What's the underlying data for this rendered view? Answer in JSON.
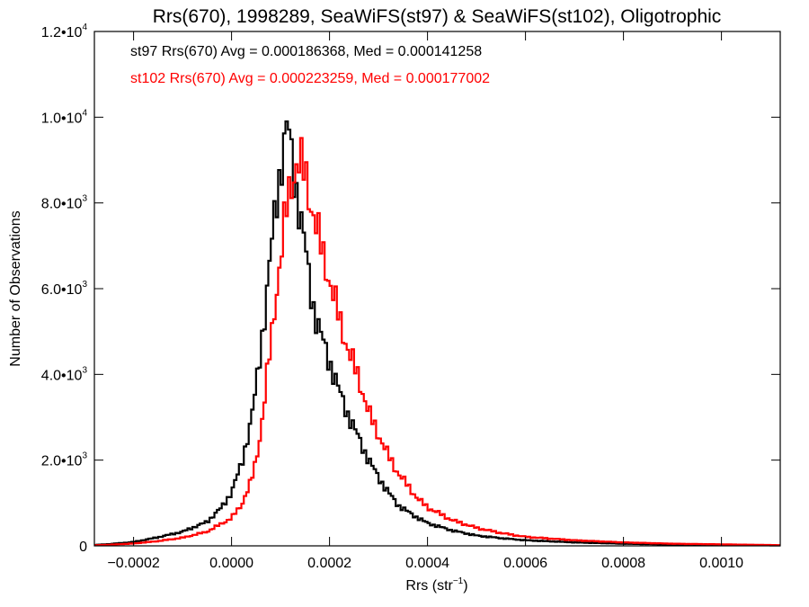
{
  "chart_data": {
    "type": "histogram",
    "title": "Rrs(670), 1998289, SeaWiFS(st97) & SeaWiFS(st102), Oligotrophic",
    "xlabel": "Rrs (str",
    "xlabel_sup": "−1",
    "xlabel_suffix": ")",
    "ylabel": "Number of Observations",
    "xlim": [
      -0.00028,
      0.00112
    ],
    "ylim": [
      0,
      12000
    ],
    "grid": false,
    "legend_position": "top-left",
    "x_ticks": [
      {
        "value": -0.0002,
        "label": "−0.0002"
      },
      {
        "value": 0.0,
        "label": "0.0000"
      },
      {
        "value": 0.0002,
        "label": "0.0002"
      },
      {
        "value": 0.0004,
        "label": "0.0004"
      },
      {
        "value": 0.0006,
        "label": "0.0006"
      },
      {
        "value": 0.0008,
        "label": "0.0008"
      },
      {
        "value": 0.001,
        "label": "0.0010"
      }
    ],
    "y_ticks": [
      {
        "value": 0,
        "label": "0",
        "sup": ""
      },
      {
        "value": 2000,
        "label": "2.0•10",
        "sup": "3"
      },
      {
        "value": 4000,
        "label": "4.0•10",
        "sup": "3"
      },
      {
        "value": 6000,
        "label": "6.0•10",
        "sup": "3"
      },
      {
        "value": 8000,
        "label": "8.0•10",
        "sup": "3"
      },
      {
        "value": 10000,
        "label": "1.0•10",
        "sup": "4"
      },
      {
        "value": 12000,
        "label": "1.2•10",
        "sup": "4"
      }
    ],
    "annotations": [
      "st97 Rrs(670) Avg = 0.000186368, Med = 0.000141258",
      "st102 Rrs(670) Avg = 0.000223259, Med = 0.000177002"
    ],
    "bin_width": 5e-06,
    "series": [
      {
        "name": "st97",
        "color": "#000000",
        "points": [
          [
            -0.00028,
            20
          ],
          [
            -0.00025,
            40
          ],
          [
            -0.0002,
            90
          ],
          [
            -0.00015,
            200
          ],
          [
            -0.0001,
            330
          ],
          [
            -5e-05,
            560
          ],
          [
            -2e-05,
            900
          ],
          [
            0.0,
            1250
          ],
          [
            2e-05,
            1900
          ],
          [
            4e-05,
            2900
          ],
          [
            5e-05,
            3700
          ],
          [
            6e-05,
            4700
          ],
          [
            7e-05,
            5600
          ],
          [
            8e-05,
            6800
          ],
          [
            9e-05,
            8000
          ],
          [
            0.0001,
            8800
          ],
          [
            0.00011,
            9500
          ],
          [
            0.000115,
            9900
          ],
          [
            0.00012,
            9300
          ],
          [
            0.00013,
            8500
          ],
          [
            0.00014,
            7700
          ],
          [
            0.00015,
            7000
          ],
          [
            0.00016,
            6100
          ],
          [
            0.00017,
            5400
          ],
          [
            0.00018,
            5000
          ],
          [
            0.0002,
            4300
          ],
          [
            0.00022,
            3600
          ],
          [
            0.00024,
            3000
          ],
          [
            0.00026,
            2500
          ],
          [
            0.00028,
            2000
          ],
          [
            0.0003,
            1600
          ],
          [
            0.00032,
            1250
          ],
          [
            0.00034,
            950
          ],
          [
            0.00037,
            720
          ],
          [
            0.0004,
            530
          ],
          [
            0.00045,
            360
          ],
          [
            0.0005,
            240
          ],
          [
            0.00055,
            180
          ],
          [
            0.0006,
            130
          ],
          [
            0.0007,
            80
          ],
          [
            0.0008,
            50
          ],
          [
            0.0009,
            30
          ],
          [
            0.001,
            20
          ],
          [
            0.00112,
            10
          ]
        ]
      },
      {
        "name": "st102",
        "color": "#ff0000",
        "points": [
          [
            -0.00028,
            15
          ],
          [
            -0.00025,
            25
          ],
          [
            -0.0002,
            55
          ],
          [
            -0.00015,
            110
          ],
          [
            -0.0001,
            190
          ],
          [
            -5e-05,
            330
          ],
          [
            0.0,
            650
          ],
          [
            2e-05,
            950
          ],
          [
            4e-05,
            1500
          ],
          [
            5e-05,
            2000
          ],
          [
            6e-05,
            2700
          ],
          [
            7e-05,
            3700
          ],
          [
            8e-05,
            4700
          ],
          [
            9e-05,
            5800
          ],
          [
            0.0001,
            6700
          ],
          [
            0.00011,
            7700
          ],
          [
            0.00012,
            8400
          ],
          [
            0.00013,
            8800
          ],
          [
            0.000135,
            9000
          ],
          [
            0.00014,
            8900
          ],
          [
            0.00015,
            8700
          ],
          [
            0.00016,
            8100
          ],
          [
            0.00018,
            7100
          ],
          [
            0.0002,
            6200
          ],
          [
            0.00022,
            5300
          ],
          [
            0.00024,
            4500
          ],
          [
            0.00026,
            3900
          ],
          [
            0.00028,
            3100
          ],
          [
            0.0003,
            2600
          ],
          [
            0.00032,
            2100
          ],
          [
            0.00034,
            1700
          ],
          [
            0.00036,
            1400
          ],
          [
            0.00038,
            1100
          ],
          [
            0.0004,
            900
          ],
          [
            0.00045,
            600
          ],
          [
            0.0005,
            420
          ],
          [
            0.00055,
            300
          ],
          [
            0.0006,
            210
          ],
          [
            0.0007,
            130
          ],
          [
            0.0008,
            80
          ],
          [
            0.0009,
            50
          ],
          [
            0.001,
            35
          ],
          [
            0.0011,
            20
          ],
          [
            0.00112,
            15
          ]
        ]
      }
    ]
  }
}
